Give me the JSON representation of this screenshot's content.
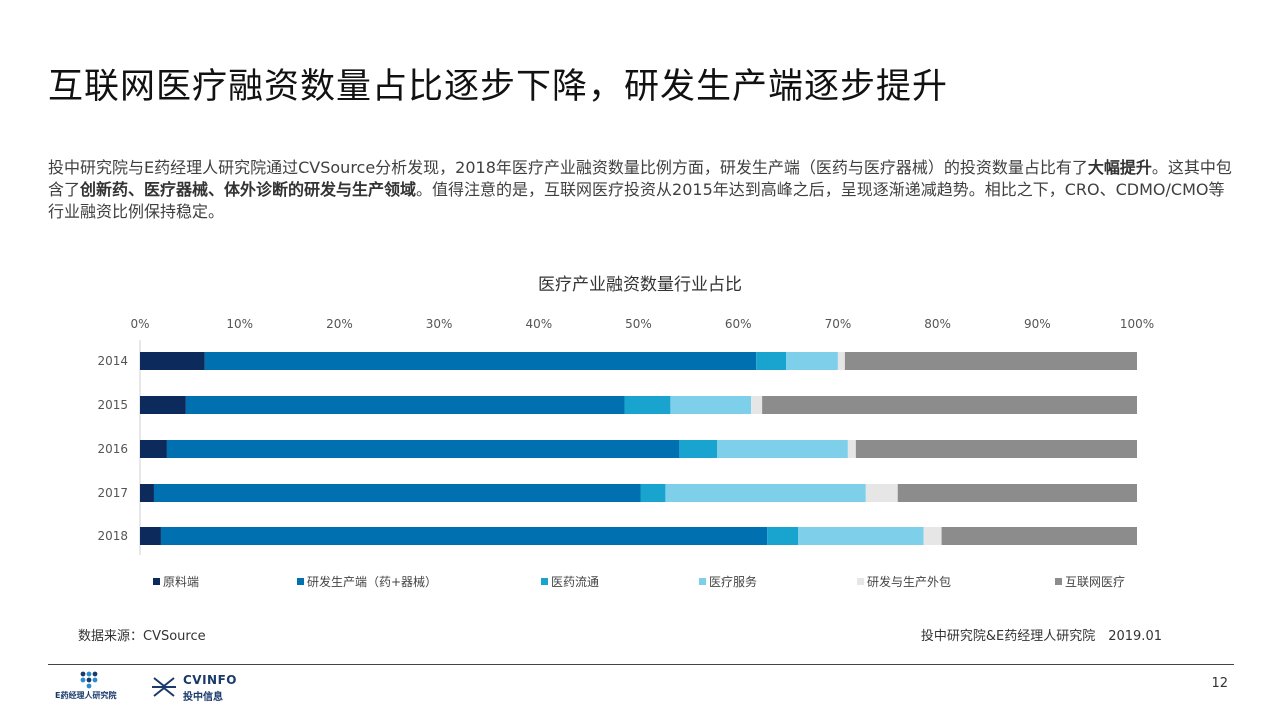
{
  "slide": {
    "title": "互联网医疗融资数量占比逐步下降，研发生产端逐步提升",
    "desc_1": "投中研究院与E药经理人研究院通过CVSource分析发现，2018年医疗产业融资数量比例方面，研发生产端（医药与医疗器械）的投资数量占比有了",
    "desc_b1": "大幅提升",
    "desc_2": "。这其中包含了",
    "desc_b2": "创新药、医疗器械、体外诊断的研发与生产领域",
    "desc_3": "。值得注意的是，互联网医疗投资从2015年达到高峰之后，呈现逐渐递减趋势。相比之下，CRO、CDMO/CMO等行业融资比例保持稳定。",
    "source": "数据来源：CVSource",
    "credit": "投中研究院&E药经理人研究院　2019.01",
    "page_number": "12"
  },
  "logos": {
    "e_yao": "E药经理人研究院",
    "cv_brand": "CVINFO",
    "cv_cn": "投中信息"
  },
  "chart_data": {
    "type": "bar",
    "orientation": "horizontal",
    "stacked": true,
    "title": "医疗产业融资数量行业占比",
    "categories": [
      "2014",
      "2015",
      "2016",
      "2017",
      "2018"
    ],
    "xlim": [
      0,
      100
    ],
    "x_ticks": [
      "0%",
      "10%",
      "20%",
      "30%",
      "40%",
      "50%",
      "60%",
      "70%",
      "80%",
      "90%",
      "100%"
    ],
    "legend_position": "bottom",
    "series": [
      {
        "name": "原料端",
        "color": "#0c2a5c",
        "values": [
          6.5,
          4.6,
          2.7,
          1.4,
          2.1
        ]
      },
      {
        "name": "研发生产端（药+器械）",
        "color": "#0070b0",
        "values": [
          55.3,
          44.0,
          51.4,
          48.8,
          60.8
        ]
      },
      {
        "name": "医药流通",
        "color": "#19a3cf",
        "values": [
          3.0,
          4.6,
          3.8,
          2.5,
          3.1
        ]
      },
      {
        "name": "医疗服务",
        "color": "#7ecfea",
        "values": [
          5.2,
          8.1,
          13.1,
          20.1,
          12.6
        ]
      },
      {
        "name": "研发与生产外包",
        "color": "#e6e6e6",
        "values": [
          0.7,
          1.1,
          0.8,
          3.2,
          1.8
        ]
      },
      {
        "name": "互联网医疗",
        "color": "#8c8c8c",
        "values": [
          29.3,
          37.6,
          28.2,
          24.0,
          19.6
        ]
      }
    ]
  }
}
